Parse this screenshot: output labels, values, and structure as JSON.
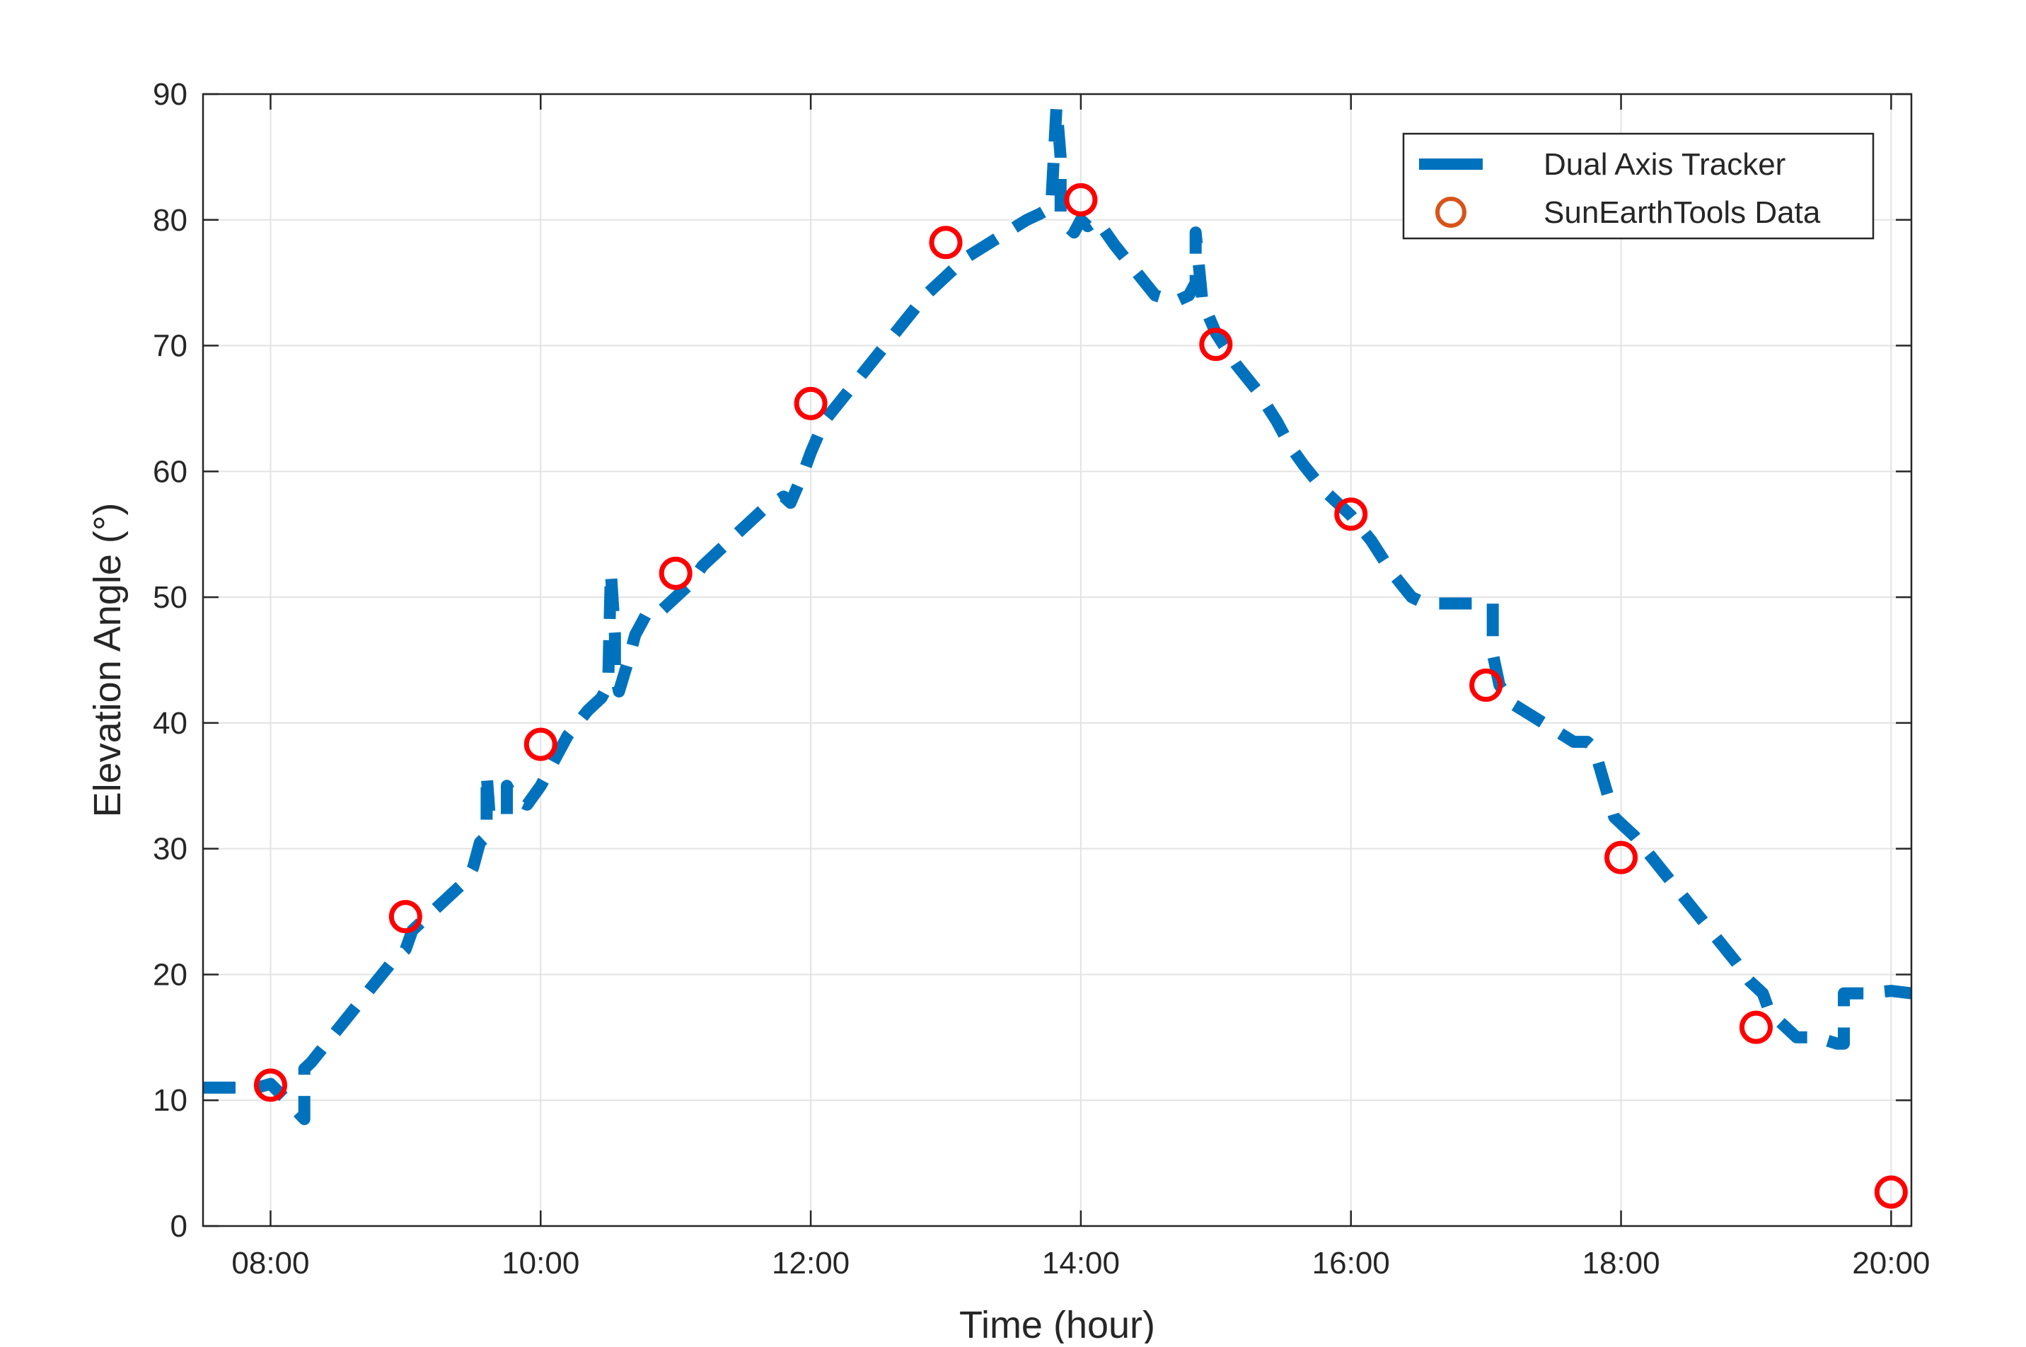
{
  "chart_data": {
    "type": "line",
    "xlabel": "Time (hour)",
    "ylabel": "Elevation Angle (°)",
    "xlim": [
      7.5,
      20.15
    ],
    "ylim": [
      0,
      90
    ],
    "x_ticks": [
      {
        "value": 8,
        "label": "08:00"
      },
      {
        "value": 10,
        "label": "10:00"
      },
      {
        "value": 12,
        "label": "12:00"
      },
      {
        "value": 14,
        "label": "14:00"
      },
      {
        "value": 16,
        "label": "16:00"
      },
      {
        "value": 18,
        "label": "18:00"
      },
      {
        "value": 20,
        "label": "20:00"
      }
    ],
    "y_ticks": [
      {
        "value": 0,
        "label": "0"
      },
      {
        "value": 10,
        "label": "10"
      },
      {
        "value": 20,
        "label": "20"
      },
      {
        "value": 30,
        "label": "30"
      },
      {
        "value": 40,
        "label": "40"
      },
      {
        "value": 50,
        "label": "50"
      },
      {
        "value": 60,
        "label": "60"
      },
      {
        "value": 70,
        "label": "70"
      },
      {
        "value": 80,
        "label": "80"
      },
      {
        "value": 90,
        "label": "90"
      }
    ],
    "grid": true,
    "legend_position": "top-right",
    "series": [
      {
        "name": "Dual Axis Tracker",
        "style": "dashed-line",
        "color": "#0072BD",
        "x": [
          7.5,
          7.7,
          7.9,
          8.0,
          8.12,
          8.25,
          8.25,
          8.3,
          8.45,
          8.6,
          8.75,
          8.9,
          9.0,
          9.05,
          9.15,
          9.3,
          9.45,
          9.5,
          9.55,
          9.6,
          9.6,
          9.62,
          9.7,
          9.75,
          9.75,
          9.8,
          9.9,
          10.0,
          10.1,
          10.2,
          10.35,
          10.45,
          10.5,
          10.52,
          10.55,
          10.55,
          10.58,
          10.65,
          10.7,
          10.75,
          10.8,
          10.9,
          11.0,
          11.1,
          11.2,
          11.35,
          11.5,
          11.65,
          11.8,
          11.85,
          11.95,
          12.0,
          12.1,
          12.25,
          12.4,
          12.55,
          12.7,
          12.85,
          13.0,
          13.15,
          13.3,
          13.45,
          13.6,
          13.7,
          13.78,
          13.82,
          13.85,
          13.85,
          13.9,
          13.95,
          14.0,
          14.05,
          14.12,
          14.25,
          14.4,
          14.55,
          14.7,
          14.8,
          14.85,
          14.85,
          14.9,
          15.0,
          15.15,
          15.3,
          15.45,
          15.55,
          15.65,
          15.8,
          15.95,
          16.0,
          16.15,
          16.3,
          16.45,
          16.55,
          16.7,
          16.9,
          17.05,
          17.05,
          17.1,
          17.2,
          17.35,
          17.5,
          17.65,
          17.75,
          17.8,
          17.95,
          18.0,
          18.1,
          18.25,
          18.4,
          18.55,
          18.7,
          18.85,
          18.95,
          19.05,
          19.1,
          19.3,
          19.45,
          19.6,
          19.65,
          19.65,
          19.8,
          20.0,
          20.15
        ],
        "y": [
          11,
          11,
          11,
          11.3,
          10,
          8.5,
          12.5,
          13,
          15,
          17,
          19,
          21,
          22,
          23.5,
          24.5,
          26,
          27.5,
          28.5,
          30.5,
          31,
          36,
          33,
          33,
          32.5,
          35,
          34,
          33.5,
          35,
          37,
          39,
          41,
          42,
          43,
          52,
          47,
          44,
          42.5,
          45,
          47,
          48,
          49,
          49,
          50,
          51,
          52.5,
          54,
          55.5,
          57,
          58,
          57.5,
          60,
          61.5,
          64,
          66,
          68,
          70,
          72,
          74,
          75.5,
          77,
          78,
          79,
          80,
          80.5,
          81,
          89,
          85,
          80,
          79.5,
          79,
          80,
          79.5,
          80,
          78,
          76,
          74,
          73.5,
          74,
          75,
          79,
          73.5,
          71,
          68.5,
          66.5,
          64,
          62,
          60.5,
          58.5,
          57,
          56.5,
          54.5,
          52,
          50,
          49.5,
          49.5,
          49.5,
          49.5,
          45.5,
          43,
          41.5,
          40.5,
          39.5,
          38.5,
          38.5,
          38,
          32.5,
          32,
          31,
          29,
          27,
          25,
          23,
          21,
          19.5,
          18.5,
          17,
          15,
          15,
          14.5,
          14.5,
          18.5,
          18.5,
          18.7,
          18.5
        ]
      },
      {
        "name": "SunEarthTools Data",
        "style": "markers-circle",
        "color": "#FF0000",
        "legend_color": "#D95319",
        "x": [
          8,
          9,
          10,
          11,
          12,
          13,
          14,
          15,
          16,
          17,
          18,
          19,
          20
        ],
        "y": [
          11.2,
          24.6,
          38.3,
          51.9,
          65.4,
          78.2,
          81.6,
          70.1,
          56.6,
          43.0,
          29.3,
          15.8,
          2.7
        ]
      }
    ]
  }
}
